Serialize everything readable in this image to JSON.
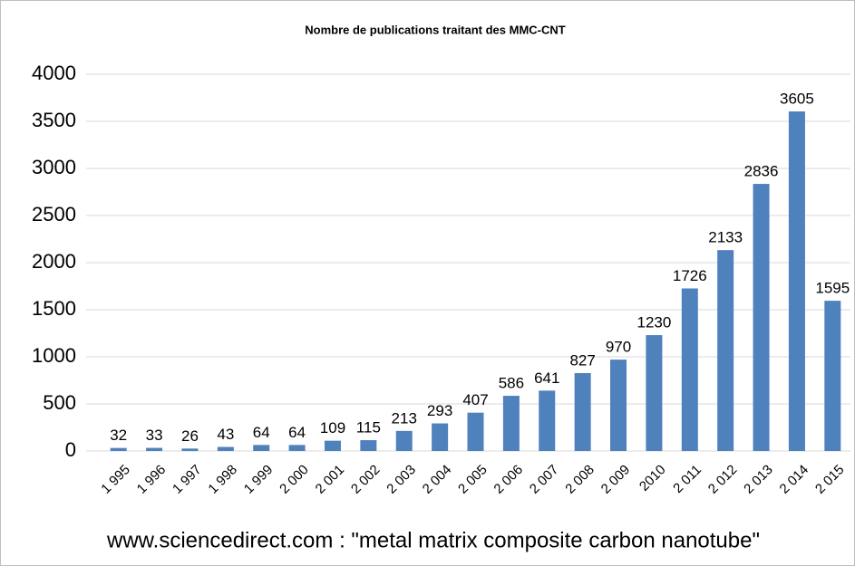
{
  "chart_data": {
    "type": "bar",
    "title": "Nombre de publications traitant des MMC-CNT",
    "categories": [
      "1 995",
      "1 996",
      "1 997",
      "1 998",
      "1 999",
      "2 000",
      "2 001",
      "2 002",
      "2 003",
      "2 004",
      "2 005",
      "2 006",
      "2 007",
      "2 008",
      "2 009",
      "2010",
      "2 011",
      "2 012",
      "2 013",
      "2 014",
      "2 015"
    ],
    "values": [
      32,
      33,
      26,
      43,
      64,
      64,
      109,
      115,
      213,
      293,
      407,
      586,
      641,
      827,
      970,
      1230,
      1726,
      2133,
      2836,
      3605,
      1595
    ],
    "color": "#4f81bd",
    "ylim": [
      0,
      4000
    ],
    "yticks": [
      0,
      500,
      1000,
      1500,
      2000,
      2500,
      3000,
      3500,
      4000
    ],
    "grid": true,
    "annotation": "www.sciencedirect.com : \"metal matrix composite carbon nanotube\""
  }
}
